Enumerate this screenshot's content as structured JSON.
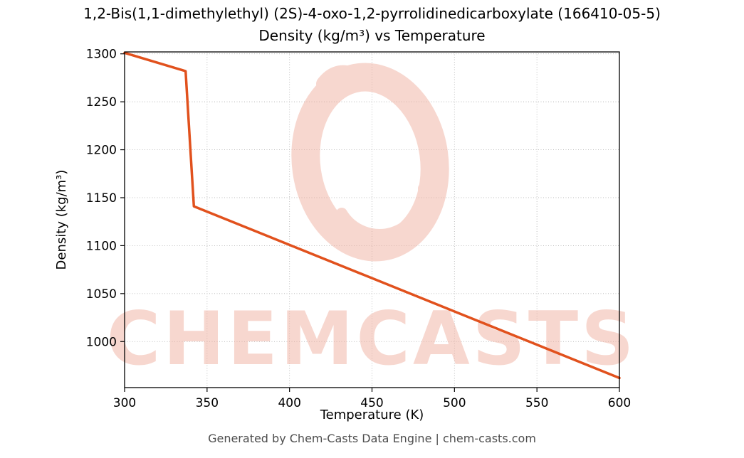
{
  "title_line1": "1,2-Bis(1,1-dimethylethyl) (2S)-4-oxo-1,2-pyrrolidinedicarboxylate (166410-05-5)",
  "title_line2": "Density (kg/m³) vs Temperature",
  "footer": "Generated by Chem-Casts Data Engine | chem-casts.com",
  "watermark": {
    "text": "CHEMCASTS",
    "color": "#f0b1a1",
    "logo": "swirl-ring-logo"
  },
  "chart_data": {
    "type": "line",
    "title": "Density (kg/m³) vs Temperature",
    "xlabel": "Temperature (K)",
    "ylabel": "Density (kg/m³)",
    "xlim": [
      300,
      600
    ],
    "ylim": [
      952,
      1302
    ],
    "xticks": [
      300,
      350,
      400,
      450,
      500,
      550,
      600
    ],
    "yticks": [
      1000,
      1050,
      1100,
      1150,
      1200,
      1250,
      1300
    ],
    "grid": true,
    "legend": "none",
    "line_color": "#e1511d",
    "line_width": 3.5,
    "series": [
      {
        "name": "Density",
        "x": [
          300,
          337,
          342,
          600
        ],
        "y": [
          1301,
          1282,
          1141,
          962
        ]
      }
    ]
  }
}
